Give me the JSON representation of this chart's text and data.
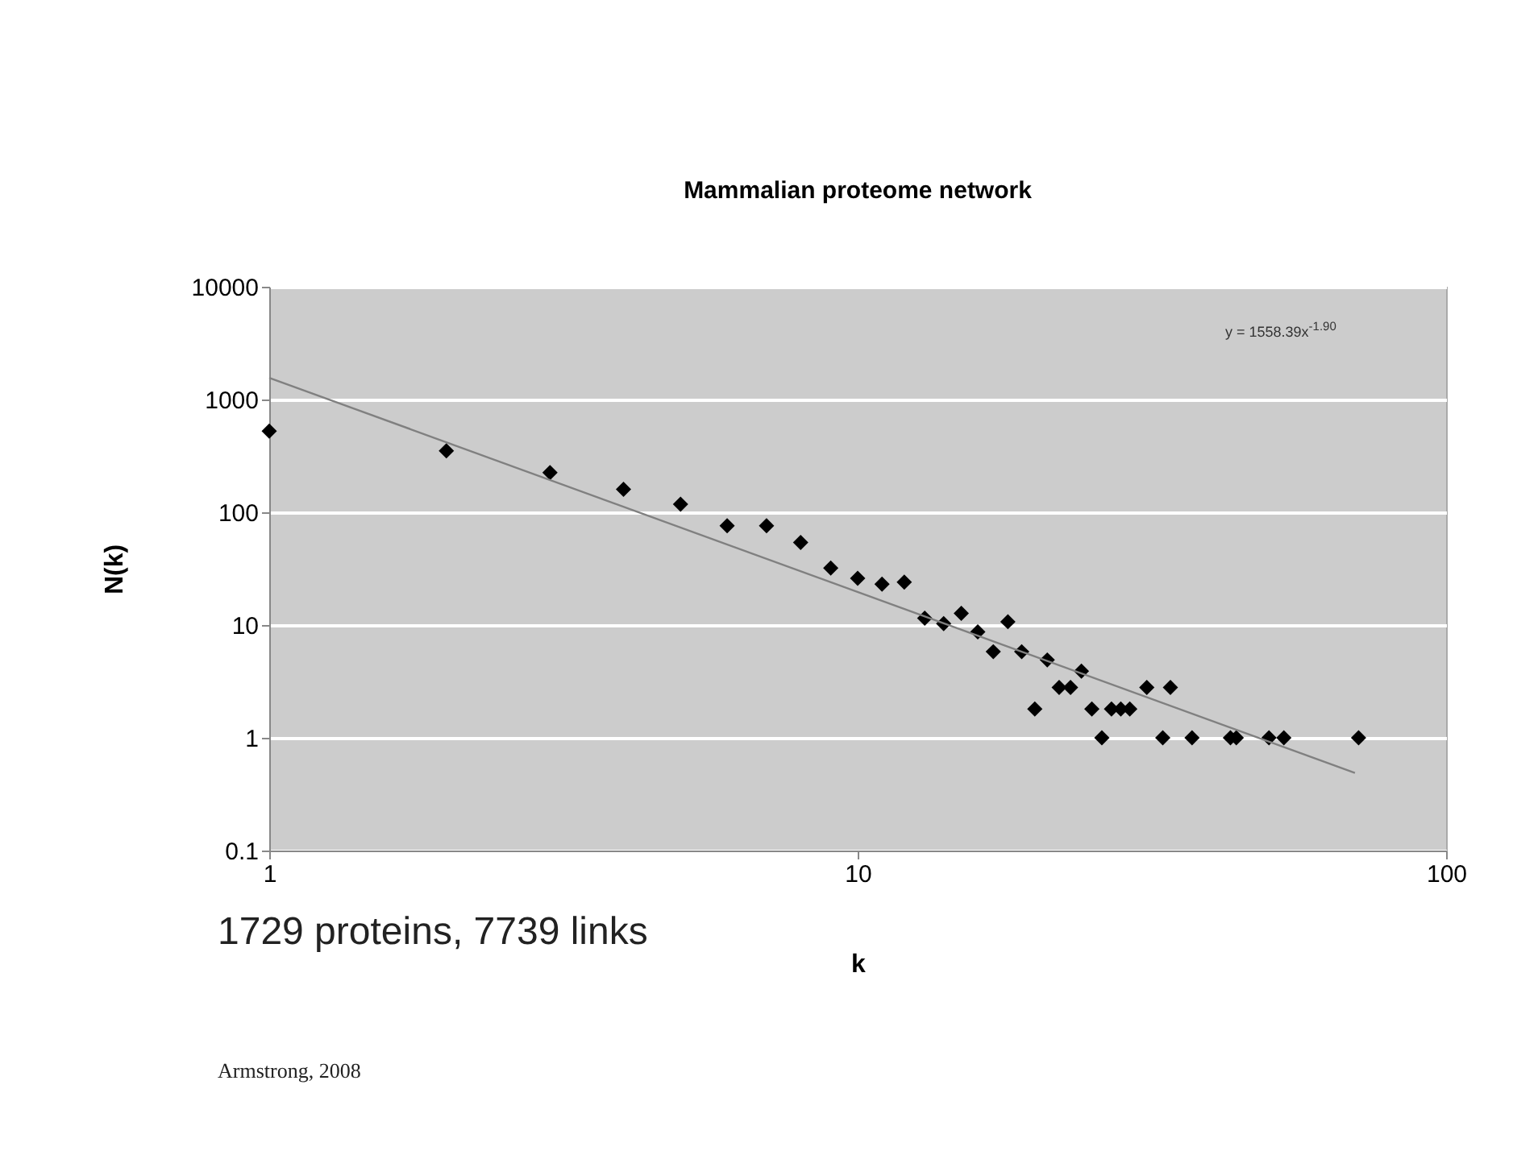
{
  "chart_data": {
    "type": "scatter",
    "title": "Mammalian proteome network",
    "xlabel": "k",
    "ylabel": "N(k)",
    "log": "xy",
    "xlim": [
      1,
      100
    ],
    "xticks": [
      1,
      10,
      100
    ],
    "ylim": [
      0.1,
      10000
    ],
    "yticks": [
      0.1,
      1,
      10,
      100,
      1000,
      10000
    ],
    "grid": "y",
    "series": [
      {
        "marker": "diamond",
        "color": "#000000",
        "x": [
          1,
          2,
          3,
          4,
          5,
          6,
          7,
          8,
          9,
          10,
          11,
          12,
          13,
          14,
          15,
          16,
          17,
          18,
          19,
          20,
          21,
          22,
          23,
          24,
          25,
          26,
          27,
          28,
          29,
          31,
          33,
          34,
          37,
          43,
          44,
          50,
          53,
          71
        ],
        "values": [
          525,
          350,
          225,
          160,
          118,
          76,
          76,
          54,
          32,
          26,
          23,
          24,
          11.5,
          10.3,
          12.7,
          8.7,
          5.8,
          10.7,
          5.8,
          1.8,
          4.9,
          2.8,
          2.8,
          3.9,
          1.8,
          1,
          1.8,
          1.8,
          1.8,
          2.8,
          1,
          2.8,
          1,
          1,
          1,
          1,
          1,
          1
        ]
      },
      {
        "type": "line",
        "color": "#808080",
        "x": [
          1,
          70
        ],
        "values": [
          1558.39,
          0.487
        ]
      }
    ],
    "annotations": [
      "y = 1558.39x$^{-1.90}$",
      "1729 proteins, 7739 links",
      "Armstrong, 2008"
    ]
  }
}
